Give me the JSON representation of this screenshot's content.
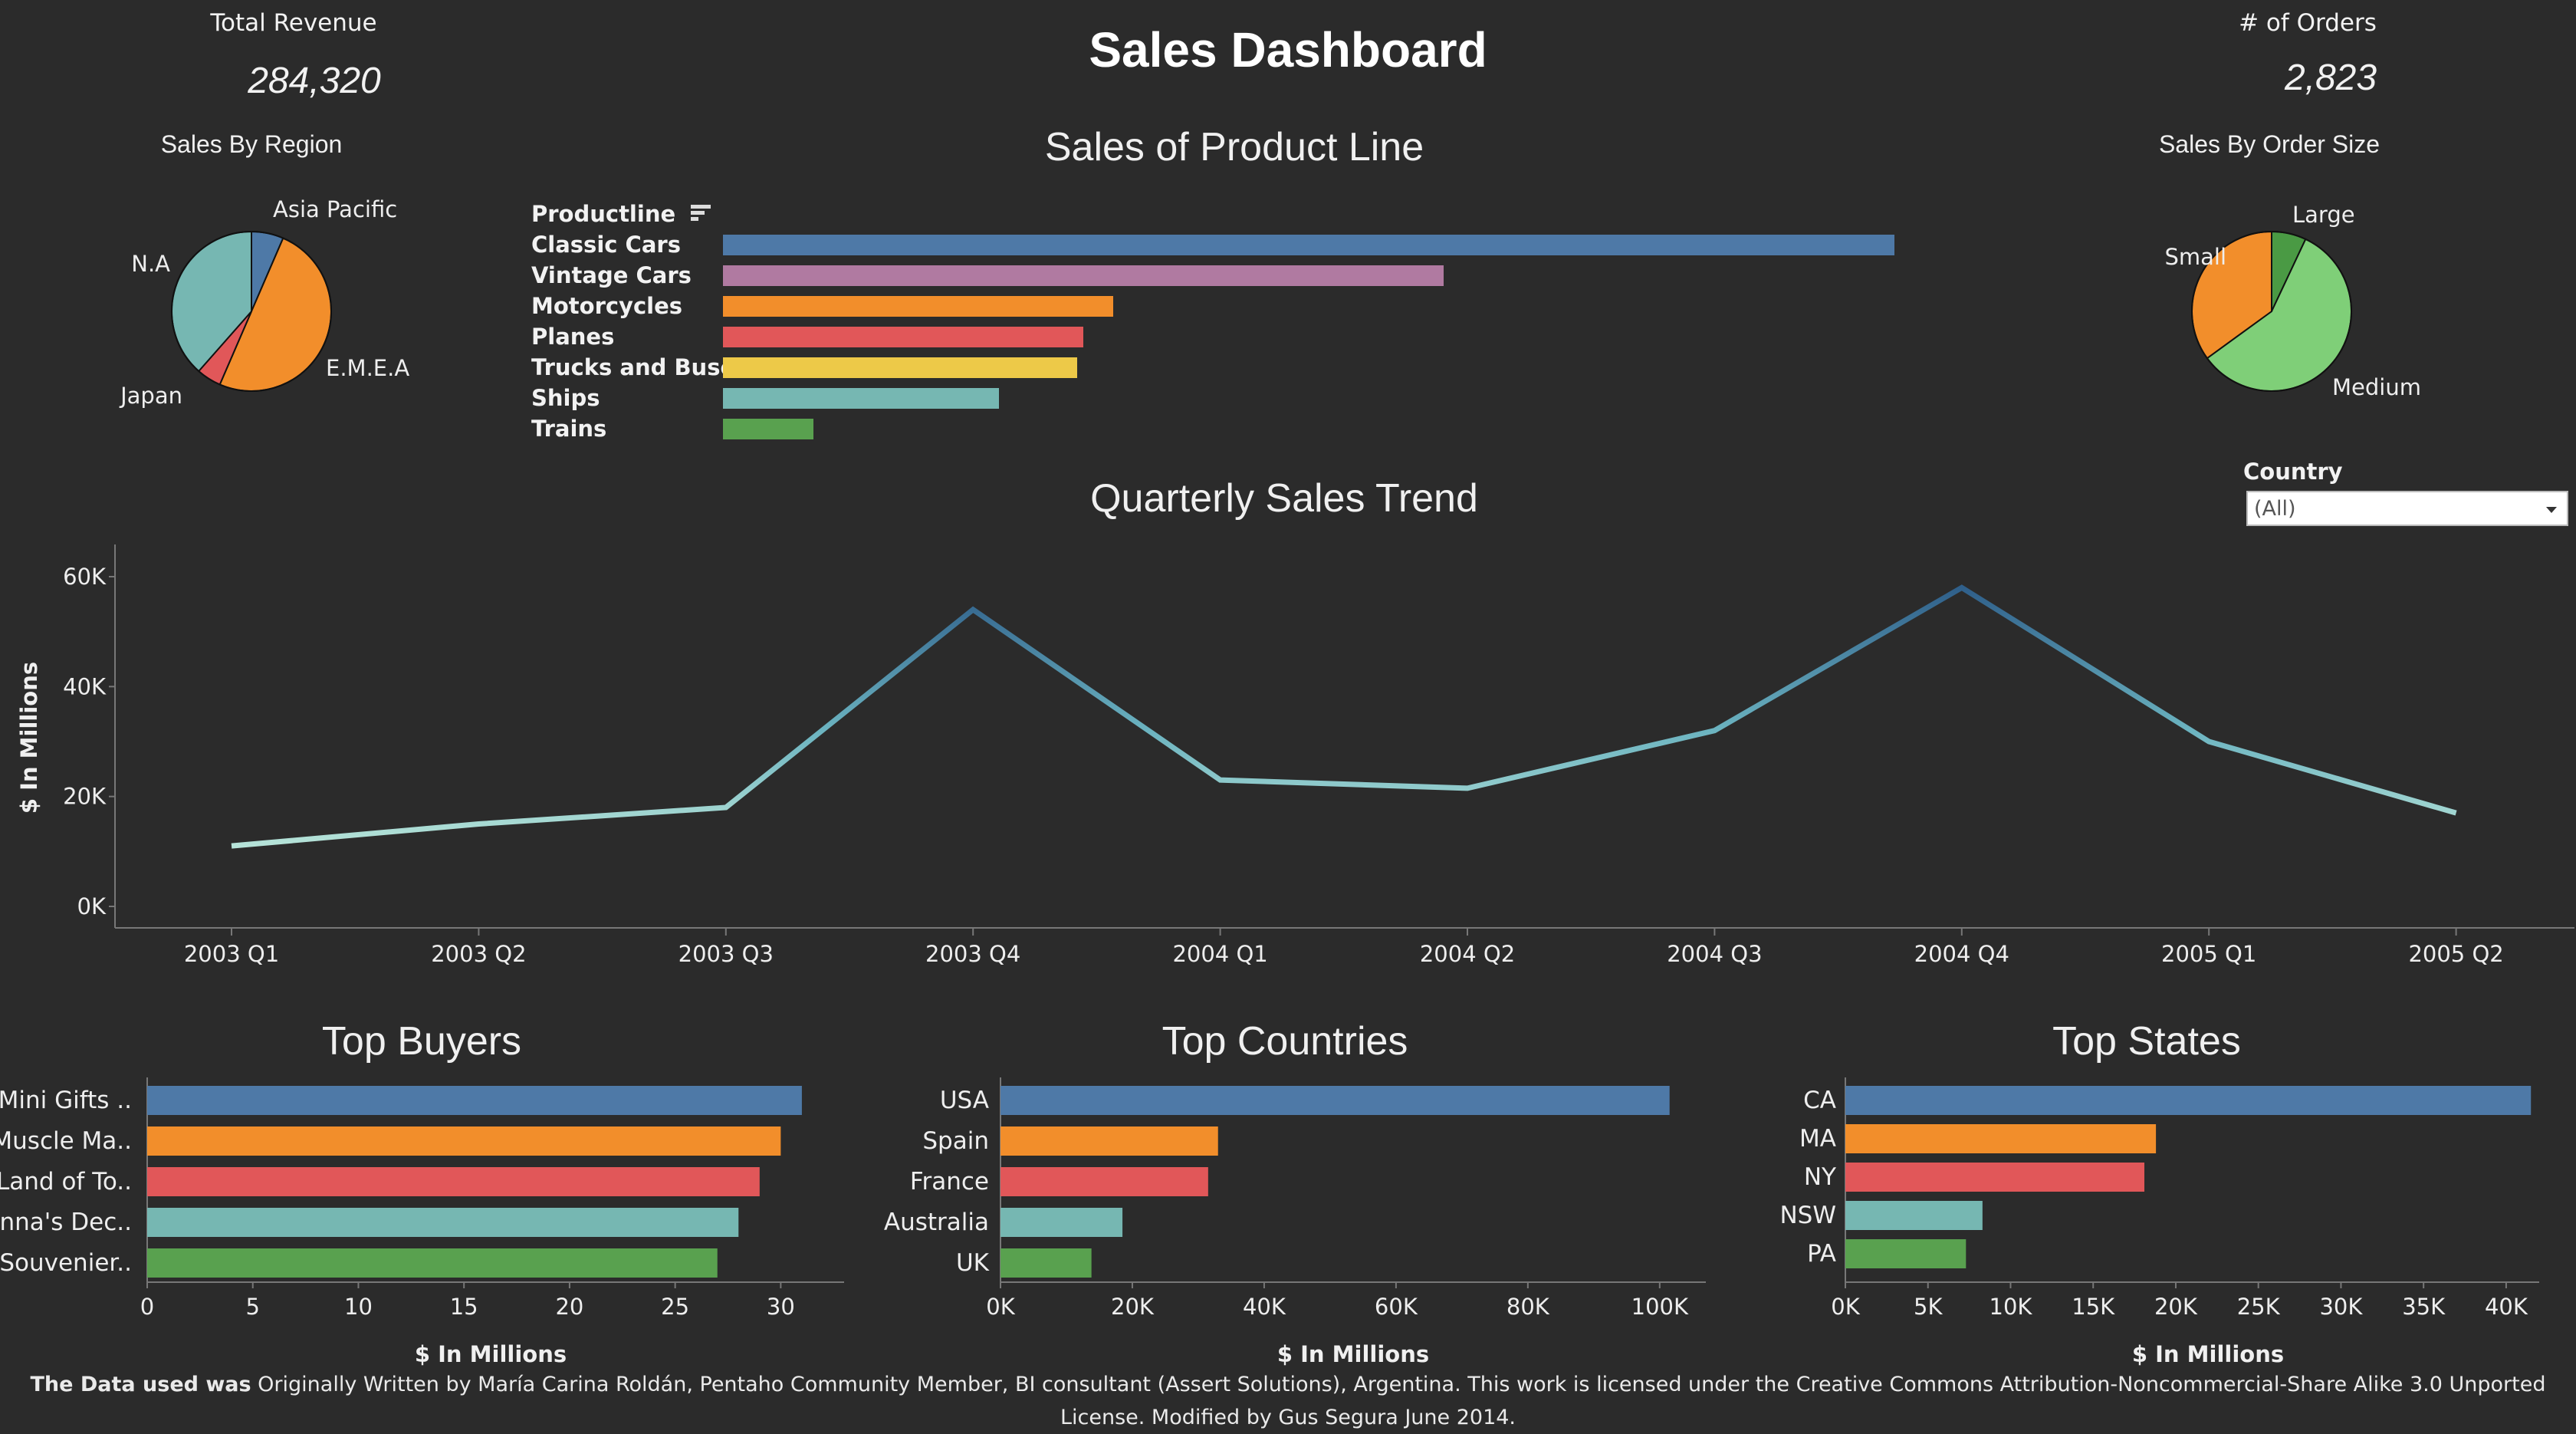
{
  "header": {
    "title": "Sales Dashboard"
  },
  "kpis": {
    "revenue_label": "Total Revenue",
    "revenue_value": "284,320",
    "orders_label": "# of Orders",
    "orders_value": "2,823"
  },
  "filter": {
    "label": "Country",
    "selected": "(All)",
    "icon": "chevron-down-icon"
  },
  "product_line": {
    "title": "Sales of Product Line",
    "column_header": "Productline",
    "sort_icon": "sort-icon"
  },
  "trend": {
    "title": "Quarterly Sales Trend",
    "ylabel": "$ In Millions"
  },
  "buyers": {
    "title": "Top Buyers",
    "xlabel": "$ In Millions"
  },
  "countries": {
    "title": "Top Countries",
    "xlabel": "$ In Millions"
  },
  "states": {
    "title": "Top States",
    "xlabel": "$ In Millions"
  },
  "footer": {
    "bold_part": "The Data used was",
    "rest": " Originally Written by María Carina Roldán, Pentaho Community Member, BI consultant (Assert Solutions), Argentina. This work is licensed under the Creative Commons Attribution-Noncommercial-Share Alike 3.0 Unported License. Modified by Gus Segura June 2014."
  },
  "colors": {
    "background": "#2b2b2b",
    "blue": "#4e79a7",
    "orange": "#f28e2b",
    "red": "#e15759",
    "teal": "#76b7b2",
    "green": "#59a14f",
    "yellow": "#edc948",
    "purple": "#b07aa1",
    "light_green": "#7fcf78",
    "dark_green": "#4a9a44"
  },
  "chart_data": [
    {
      "id": "region_pie",
      "type": "pie",
      "title": "Sales By Region",
      "slices": [
        {
          "label": "Asia Pacific",
          "value": 0.065,
          "color": "#4e79a7"
        },
        {
          "label": "E.M.E.A",
          "value": 0.5,
          "color": "#f28e2b"
        },
        {
          "label": "Japan",
          "value": 0.05,
          "color": "#e15759"
        },
        {
          "label": "N.A",
          "value": 0.385,
          "color": "#76b7b2"
        }
      ]
    },
    {
      "id": "product_line",
      "type": "bar",
      "orientation": "horizontal",
      "categories": [
        "Classic Cars",
        "Vintage Cars",
        "Motorcycles",
        "Planes",
        "Trucks and Buses",
        "Ships",
        "Trains"
      ],
      "values": [
        3900,
        2400,
        1300,
        1200,
        1180,
        920,
        300
      ],
      "colors": [
        "#4e79a7",
        "#b07aa1",
        "#f28e2b",
        "#e15759",
        "#edc948",
        "#76b7b2",
        "#59a14f"
      ]
    },
    {
      "id": "order_size_pie",
      "type": "pie",
      "title": "Sales By Order Size",
      "slices": [
        {
          "label": "Large",
          "value": 0.07,
          "color": "#4a9a44"
        },
        {
          "label": "Medium",
          "value": 0.58,
          "color": "#7fcf78"
        },
        {
          "label": "Small",
          "value": 0.35,
          "color": "#f28e2b"
        }
      ]
    },
    {
      "id": "quarterly_trend",
      "type": "line",
      "ylabel": "$ In Millions",
      "x": [
        "2003 Q1",
        "2003 Q2",
        "2003 Q3",
        "2003 Q4",
        "2004 Q1",
        "2004 Q2",
        "2004 Q3",
        "2004 Q4",
        "2005 Q1",
        "2005 Q2"
      ],
      "values": [
        11000,
        15000,
        18000,
        54000,
        23000,
        21500,
        32000,
        58000,
        30000,
        17000
      ],
      "ylim": [
        0,
        62000
      ],
      "yticks": [
        0,
        20000,
        40000,
        60000
      ],
      "ytick_labels": [
        "0K",
        "20K",
        "40K",
        "60K"
      ]
    },
    {
      "id": "top_buyers",
      "type": "bar",
      "orientation": "horizontal",
      "categories": [
        "Mini Gifts ..",
        "Muscle Ma..",
        "Land of To..",
        "Anna's Dec..",
        "Souvenier.."
      ],
      "values": [
        31,
        30,
        29,
        28,
        27
      ],
      "colors": [
        "#4e79a7",
        "#f28e2b",
        "#e15759",
        "#76b7b2",
        "#59a14f"
      ],
      "xlim": [
        0,
        33
      ],
      "xticks": [
        0,
        5,
        10,
        15,
        20,
        25,
        30
      ],
      "xtick_labels": [
        "0",
        "5",
        "10",
        "15",
        "20",
        "25",
        "30"
      ],
      "xlabel": "$ In Millions"
    },
    {
      "id": "top_countries",
      "type": "bar",
      "orientation": "horizontal",
      "categories": [
        "USA",
        "Spain",
        "France",
        "Australia",
        "UK"
      ],
      "values": [
        101500,
        33000,
        31500,
        18500,
        13800
      ],
      "colors": [
        "#4e79a7",
        "#f28e2b",
        "#e15759",
        "#76b7b2",
        "#59a14f"
      ],
      "xlim": [
        0,
        107000
      ],
      "xticks": [
        0,
        20000,
        40000,
        60000,
        80000,
        100000
      ],
      "xtick_labels": [
        "0K",
        "20K",
        "40K",
        "60K",
        "80K",
        "100K"
      ],
      "xlabel": "$ In Millions"
    },
    {
      "id": "top_states",
      "type": "bar",
      "orientation": "horizontal",
      "categories": [
        "CA",
        "MA",
        "NY",
        "NSW",
        "PA"
      ],
      "values": [
        41500,
        18800,
        18100,
        8300,
        7300
      ],
      "colors": [
        "#4e79a7",
        "#f28e2b",
        "#e15759",
        "#76b7b2",
        "#59a14f"
      ],
      "xlim": [
        0,
        42000
      ],
      "xticks": [
        0,
        5000,
        10000,
        15000,
        20000,
        25000,
        30000,
        35000,
        40000
      ],
      "xtick_labels": [
        "0K",
        "5K",
        "10K",
        "15K",
        "20K",
        "25K",
        "30K",
        "35K",
        "40K"
      ],
      "xlabel": "$ In Millions"
    }
  ]
}
